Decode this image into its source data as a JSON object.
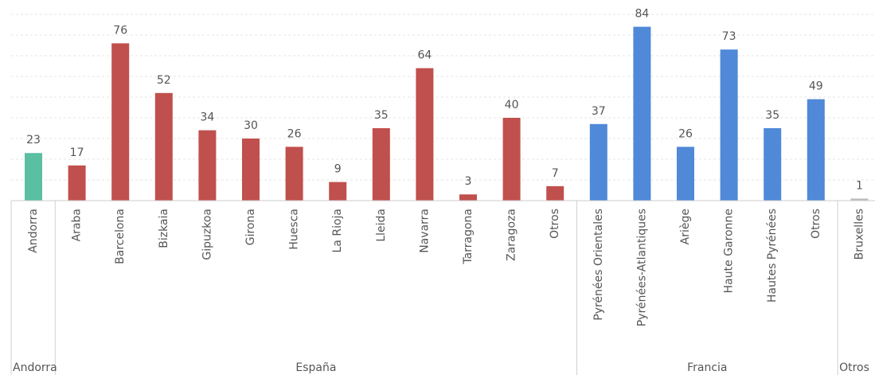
{
  "chart_data": {
    "type": "bar",
    "title": "",
    "xlabel": "",
    "ylabel": "",
    "ylim": [
      0,
      90
    ],
    "grid": true,
    "groups": [
      {
        "name": "Andorra",
        "color": "#5bbfa1",
        "categories": [
          "Andorra"
        ],
        "values": [
          23
        ]
      },
      {
        "name": "España",
        "color": "#c0504d",
        "categories": [
          "Araba",
          "Barcelona",
          "Bizkaia",
          "Gipuzkoa",
          "Girona",
          "Huesca",
          "La Rioja",
          "Lleida",
          "Navarra",
          "Tarragona",
          "Zaragoza",
          "Otros"
        ],
        "values": [
          17,
          76,
          52,
          34,
          30,
          26,
          9,
          35,
          64,
          3,
          40,
          7
        ]
      },
      {
        "name": "Francia",
        "color": "#4f89d8",
        "categories": [
          "Pyrénées Orientales",
          "Pyrénées-Atlantiques",
          "Ariège",
          "Haute Garonne",
          "Hautes Pyrénées",
          "Otros"
        ],
        "values": [
          37,
          84,
          26,
          73,
          35,
          49
        ]
      },
      {
        "name": "Otros",
        "color": "#bbbbbb",
        "categories": [
          "Bruxelles"
        ],
        "values": [
          1
        ]
      }
    ]
  }
}
